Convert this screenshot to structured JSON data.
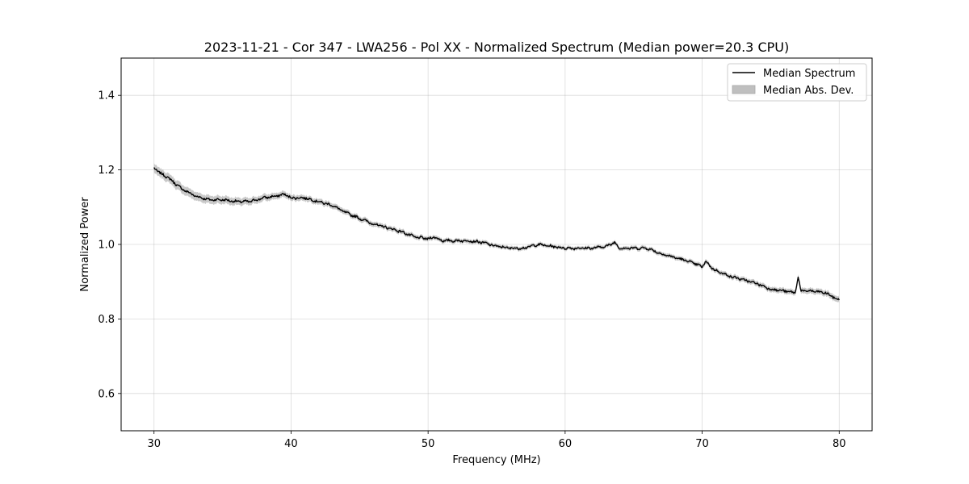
{
  "chart_data": {
    "type": "line",
    "title": "2023-11-21 - Cor 347 - LWA256 - Pol XX - Normalized Spectrum (Median power=20.3 CPU)",
    "xlabel": "Frequency (MHz)",
    "ylabel": "Normalized Power",
    "xlim": [
      27.6,
      82.4
    ],
    "ylim": [
      0.5,
      1.5
    ],
    "xticks": [
      30,
      40,
      50,
      60,
      70,
      80
    ],
    "yticks": [
      0.6,
      0.8,
      1.0,
      1.2,
      1.4
    ],
    "xtick_labels": [
      "30",
      "40",
      "50",
      "60",
      "70",
      "80"
    ],
    "ytick_labels": [
      "0.6",
      "0.8",
      "1.0",
      "1.2",
      "1.4"
    ],
    "grid": true,
    "legend_position": "top-right",
    "series": [
      {
        "name": "Median Spectrum",
        "kind": "line",
        "color": "#000000",
        "x": [
          30,
          30.5,
          31,
          31.5,
          32,
          32.5,
          33,
          33.5,
          34,
          35,
          36,
          37,
          38,
          39,
          39.5,
          40,
          41,
          42,
          43,
          44,
          45,
          46,
          47,
          48,
          49,
          50,
          50.5,
          51,
          52,
          53,
          54,
          55,
          56,
          57,
          58,
          59,
          60,
          61,
          62,
          63,
          63.6,
          64,
          65,
          66,
          67,
          68,
          69,
          70,
          70.3,
          70.6,
          71,
          72,
          73,
          74,
          75,
          76,
          76.8,
          77,
          77.2,
          78,
          79,
          80
        ],
        "values": [
          1.205,
          1.19,
          1.18,
          1.165,
          1.15,
          1.14,
          1.13,
          1.125,
          1.12,
          1.12,
          1.115,
          1.115,
          1.125,
          1.13,
          1.135,
          1.125,
          1.125,
          1.115,
          1.105,
          1.085,
          1.07,
          1.055,
          1.045,
          1.035,
          1.02,
          1.015,
          1.02,
          1.01,
          1.01,
          1.01,
          1.005,
          0.995,
          0.99,
          0.99,
          1.0,
          0.995,
          0.99,
          0.99,
          0.99,
          0.995,
          1.005,
          0.99,
          0.99,
          0.99,
          0.975,
          0.965,
          0.955,
          0.94,
          0.955,
          0.94,
          0.93,
          0.915,
          0.905,
          0.895,
          0.88,
          0.875,
          0.87,
          0.915,
          0.875,
          0.875,
          0.87,
          0.85
        ]
      },
      {
        "name": "Median Abs. Dev.",
        "kind": "band",
        "color": "#bfbfbf",
        "x": [
          30,
          32,
          34,
          36,
          38,
          40,
          45,
          50,
          60,
          70,
          75,
          80
        ],
        "halfwidth": [
          0.012,
          0.012,
          0.011,
          0.01,
          0.009,
          0.008,
          0.007,
          0.006,
          0.005,
          0.006,
          0.007,
          0.008
        ]
      }
    ]
  }
}
